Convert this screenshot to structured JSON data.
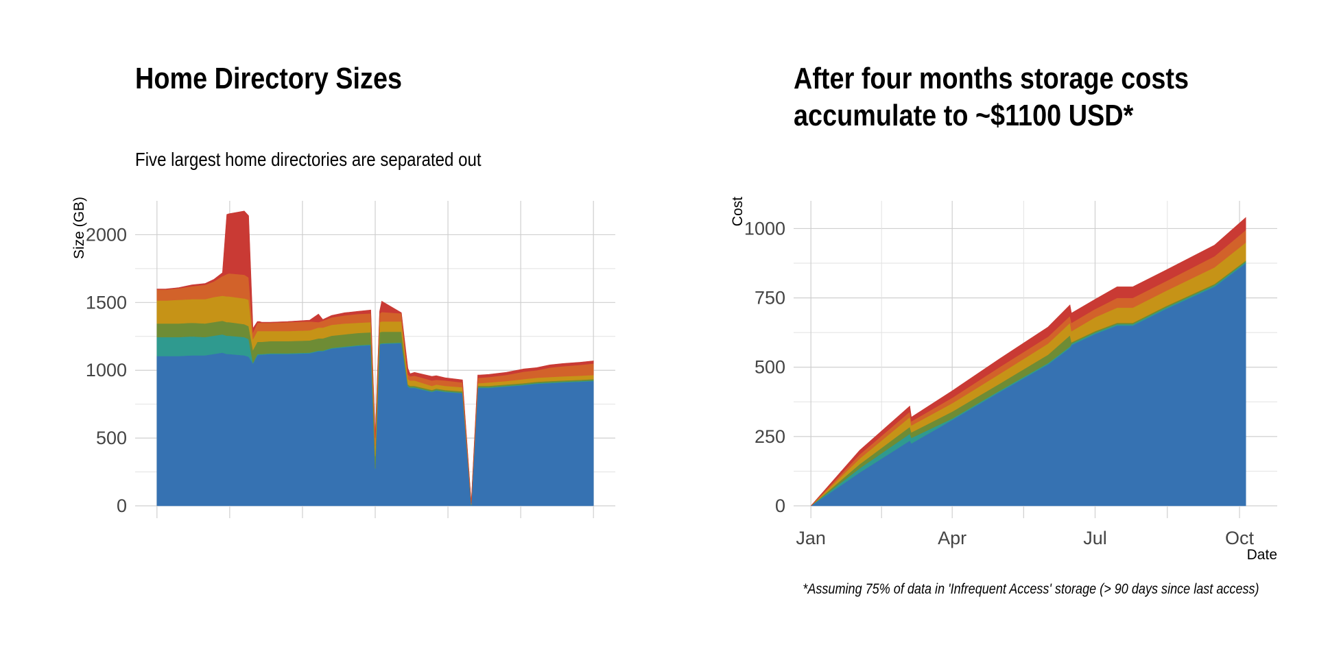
{
  "chart_data": [
    {
      "type": "area",
      "stacked": true,
      "title": "Home Directory Sizes",
      "subtitle": "Five largest home directories are separated out",
      "xlabel": "",
      "ylabel": "Size (GB)",
      "ylim": [
        0,
        2250
      ],
      "yticks": [
        0,
        500,
        1000,
        1500,
        2000
      ],
      "xlim": [
        0,
        1
      ],
      "grid": true,
      "legend": "none",
      "x": [
        0.0,
        0.02,
        0.05,
        0.08,
        0.11,
        0.13,
        0.15,
        0.16,
        0.165,
        0.2,
        0.21,
        0.22,
        0.23,
        0.235,
        0.24,
        0.26,
        0.3,
        0.35,
        0.37,
        0.38,
        0.4,
        0.43,
        0.46,
        0.49,
        0.5,
        0.51,
        0.515,
        0.56,
        0.575,
        0.58,
        0.59,
        0.63,
        0.64,
        0.66,
        0.7,
        0.72,
        0.735,
        0.74,
        0.76,
        0.8,
        0.84,
        0.87,
        0.9,
        0.93,
        0.97,
        1.0
      ],
      "series": [
        {
          "values": [
            1105,
            1105,
            1105,
            1110,
            1110,
            1120,
            1130,
            1120,
            1120,
            1110,
            1100,
            1050,
            1110,
            1115,
            1115,
            1120,
            1120,
            1125,
            1140,
            1140,
            1160,
            1170,
            1180,
            1185,
            270,
            1190,
            1195,
            1200,
            880,
            870,
            870,
            840,
            850,
            840,
            830,
            0,
            870,
            870,
            870,
            880,
            890,
            900,
            905,
            910,
            915,
            920
          ]
        },
        {
          "values": [
            140,
            140,
            140,
            140,
            135,
            135,
            135,
            135,
            135,
            135,
            130,
            5,
            10,
            5,
            5,
            5,
            5,
            5,
            5,
            5,
            5,
            5,
            5,
            5,
            5,
            5,
            5,
            5,
            5,
            5,
            5,
            5,
            5,
            5,
            5,
            5,
            5,
            5,
            5,
            5,
            5,
            5,
            5,
            5,
            5,
            5
          ]
        },
        {
          "values": [
            100,
            100,
            100,
            100,
            100,
            100,
            100,
            100,
            100,
            95,
            95,
            95,
            90,
            90,
            90,
            90,
            90,
            90,
            90,
            90,
            90,
            90,
            90,
            90,
            90,
            85,
            85,
            80,
            10,
            10,
            10,
            10,
            10,
            10,
            10,
            5,
            10,
            10,
            10,
            10,
            10,
            10,
            10,
            10,
            10,
            10
          ]
        },
        {
          "values": [
            170,
            170,
            175,
            175,
            180,
            185,
            185,
            190,
            190,
            190,
            195,
            80,
            80,
            80,
            80,
            75,
            75,
            75,
            80,
            80,
            80,
            80,
            75,
            75,
            75,
            75,
            75,
            75,
            40,
            40,
            40,
            30,
            30,
            30,
            30,
            5,
            20,
            20,
            25,
            25,
            30,
            30,
            30,
            30,
            30,
            30
          ]
        },
        {
          "values": [
            80,
            80,
            85,
            95,
            105,
            115,
            145,
            165,
            170,
            175,
            165,
            50,
            60,
            60,
            60,
            60,
            65,
            65,
            40,
            50,
            55,
            60,
            65,
            65,
            60,
            65,
            70,
            60,
            35,
            30,
            35,
            40,
            35,
            40,
            35,
            5,
            40,
            40,
            40,
            45,
            55,
            55,
            70,
            75,
            80,
            85
          ]
        },
        {
          "values": [
            5,
            5,
            5,
            10,
            10,
            15,
            25,
            440,
            440,
            470,
            455,
            30,
            10,
            10,
            5,
            5,
            5,
            10,
            60,
            10,
            15,
            20,
            20,
            25,
            10,
            15,
            80,
            5,
            45,
            20,
            25,
            30,
            30,
            20,
            20,
            5,
            20,
            20,
            20,
            20,
            20,
            20,
            20,
            20,
            20,
            20
          ]
        }
      ],
      "colors": [
        "#3672b2",
        "#2f9a8f",
        "#6e8c35",
        "#c69317",
        "#d2622a",
        "#c93a34"
      ]
    },
    {
      "type": "area",
      "stacked": true,
      "title": "After four months storage costs accumulate to ~$1100 USD*",
      "xlabel": "Date",
      "ylabel": "Cost",
      "ylim": [
        0,
        1100
      ],
      "yticks": [
        0,
        250,
        500,
        750,
        1000
      ],
      "xlim": [
        "2021-12-21",
        "2022-10-25"
      ],
      "xticks": [
        "Jan",
        "Apr",
        "Jul",
        "Oct"
      ],
      "xtick_dates": [
        "2022-01-01",
        "2022-04-01",
        "2022-07-01",
        "2022-10-01"
      ],
      "grid": true,
      "legend": "none",
      "caption": "*Assuming 75% of data in 'Infrequent Access' storage (> 90 days since last access)",
      "x": [
        "2022-01-01",
        "2022-02-01",
        "2022-03-05",
        "2022-03-06",
        "2022-04-01",
        "2022-05-01",
        "2022-06-01",
        "2022-06-15",
        "2022-06-16",
        "2022-07-01",
        "2022-07-15",
        "2022-07-25",
        "2022-08-15",
        "2022-09-15",
        "2022-10-05"
      ],
      "series": [
        {
          "values": [
            0,
            120,
            235,
            225,
            310,
            410,
            510,
            570,
            580,
            620,
            650,
            650,
            710,
            790,
            875
          ]
        },
        {
          "values": [
            0,
            15,
            25,
            20,
            5,
            5,
            5,
            5,
            5,
            5,
            5,
            5,
            5,
            5,
            5
          ]
        },
        {
          "values": [
            0,
            15,
            25,
            20,
            25,
            25,
            30,
            40,
            5,
            5,
            5,
            5,
            5,
            5,
            5
          ]
        },
        {
          "values": [
            0,
            20,
            35,
            25,
            30,
            35,
            40,
            45,
            40,
            50,
            55,
            55,
            55,
            60,
            65
          ]
        },
        {
          "values": [
            0,
            15,
            20,
            15,
            20,
            25,
            25,
            25,
            30,
            30,
            35,
            35,
            35,
            40,
            45
          ]
        },
        {
          "values": [
            0,
            15,
            20,
            15,
            25,
            30,
            35,
            40,
            35,
            35,
            40,
            40,
            40,
            40,
            45
          ]
        }
      ],
      "colors": [
        "#3672b2",
        "#2f9a8f",
        "#6e8c35",
        "#c69317",
        "#d2622a",
        "#c93a34"
      ]
    }
  ]
}
